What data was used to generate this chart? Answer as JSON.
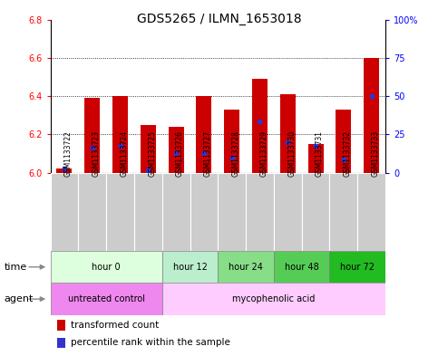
{
  "title": "GDS5265 / ILMN_1653018",
  "samples": [
    "GSM1133722",
    "GSM1133723",
    "GSM1133724",
    "GSM1133725",
    "GSM1133726",
    "GSM1133727",
    "GSM1133728",
    "GSM1133729",
    "GSM1133730",
    "GSM1133731",
    "GSM1133732",
    "GSM1133733"
  ],
  "bar_tops": [
    6.02,
    6.39,
    6.4,
    6.25,
    6.24,
    6.4,
    6.33,
    6.49,
    6.41,
    6.15,
    6.33,
    6.6
  ],
  "bar_base": 6.0,
  "blue_positions": [
    6.02,
    6.13,
    6.14,
    6.01,
    6.1,
    6.1,
    6.08,
    6.27,
    6.16,
    6.14,
    6.07,
    6.4
  ],
  "ylim": [
    6.0,
    6.8
  ],
  "yticks_left": [
    6.0,
    6.2,
    6.4,
    6.6,
    6.8
  ],
  "ytick_right_labels": [
    "0",
    "25",
    "50",
    "75",
    "100%"
  ],
  "bar_color": "#cc0000",
  "blue_color": "#3333cc",
  "sample_box_color": "#cccccc",
  "time_groups": [
    {
      "label": "hour 0",
      "start": 0,
      "end": 4,
      "color": "#ddffdd"
    },
    {
      "label": "hour 12",
      "start": 4,
      "end": 6,
      "color": "#bbeecc"
    },
    {
      "label": "hour 24",
      "start": 6,
      "end": 8,
      "color": "#88dd88"
    },
    {
      "label": "hour 48",
      "start": 8,
      "end": 10,
      "color": "#55cc55"
    },
    {
      "label": "hour 72",
      "start": 10,
      "end": 12,
      "color": "#22bb22"
    }
  ],
  "agent_groups": [
    {
      "label": "untreated control",
      "start": 0,
      "end": 4,
      "color": "#ee88ee"
    },
    {
      "label": "mycophenolic acid",
      "start": 4,
      "end": 12,
      "color": "#ffccff"
    }
  ],
  "legend_red_label": "transformed count",
  "legend_blue_label": "percentile rank within the sample",
  "bar_width": 0.55,
  "bg_color": "#ffffff",
  "title_fontsize": 10,
  "tick_fontsize": 7,
  "sample_fontsize": 5.5,
  "row_label_fontsize": 8,
  "legend_fontsize": 7.5
}
